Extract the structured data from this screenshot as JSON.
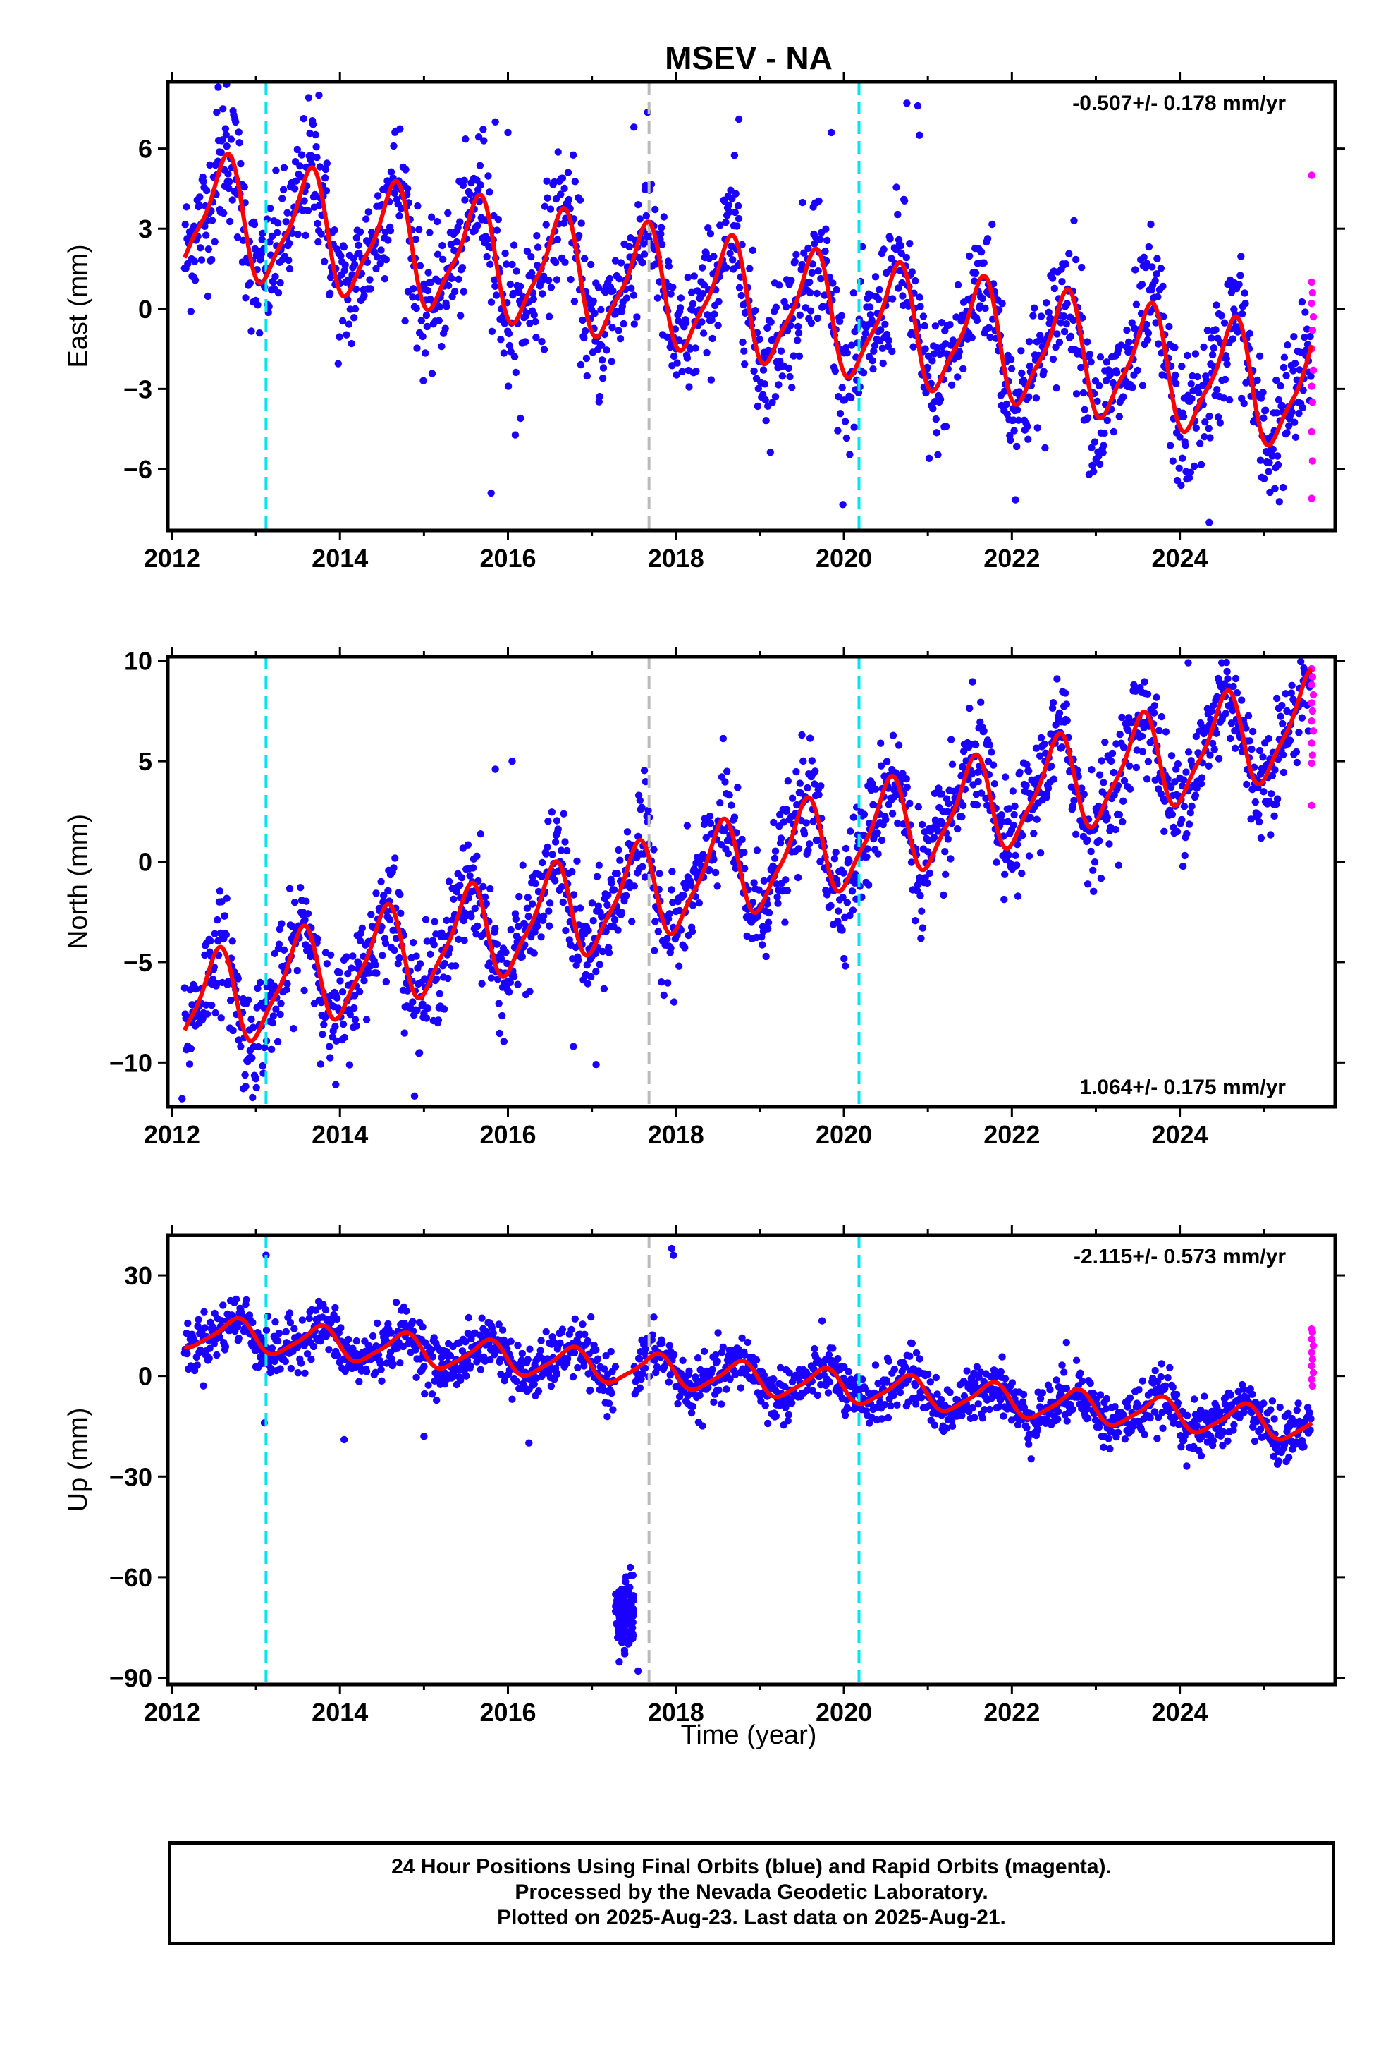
{
  "title": "MSEV - NA",
  "xlabel": "Time (year)",
  "caption": {
    "line1": "24 Hour Positions Using Final Orbits (blue) and Rapid Orbits (magenta).",
    "line2": "Processed by the Nevada Geodetic Laboratory.",
    "line3": "Plotted on 2025-Aug-23. Last data on 2025-Aug-21."
  },
  "colors": {
    "final_orbits": "#1a00ff",
    "rapid_orbits": "#ff00ff",
    "model_fit": "#ff0000",
    "equipment_change_lines": "#00e5ee",
    "other_event_line": "#bbbbbb"
  },
  "chart_data": [
    {
      "type": "scatter",
      "panel": "east",
      "ylabel": "East (mm)",
      "rate": "-0.507+/- 0.178 mm/yr",
      "xlim": [
        2011.95,
        2025.85
      ],
      "ylim": [
        -8.3,
        8.5
      ],
      "xticks": [
        "2012",
        "2014",
        "2016",
        "2018",
        "2020",
        "2022",
        "2024"
      ],
      "yticks": [
        "6",
        "3",
        "0",
        "−3",
        "−6"
      ],
      "ytick_values": [
        6,
        3,
        0,
        -3,
        -6
      ],
      "vlines_cyan": [
        2013.12,
        2020.18
      ],
      "vlines_gray": [
        2017.68
      ],
      "model": {
        "rate": -0.507,
        "ref_year": 2018.7,
        "offset": 0.3,
        "annual_amp": 2.1,
        "annual_peak": 0.62,
        "semiannual_amp": 0.55
      },
      "scatter_sd": 1.25,
      "rapid_points": [
        {
          "x": 2025.57,
          "y": 5.0
        },
        {
          "x": 2025.57,
          "y": 1.0
        },
        {
          "x": 2025.58,
          "y": 0.6
        },
        {
          "x": 2025.57,
          "y": 0.2
        },
        {
          "x": 2025.59,
          "y": -0.3
        },
        {
          "x": 2025.58,
          "y": -0.8
        },
        {
          "x": 2025.57,
          "y": -1.5
        },
        {
          "x": 2025.59,
          "y": -2.3
        },
        {
          "x": 2025.57,
          "y": -2.9
        },
        {
          "x": 2025.58,
          "y": -3.5
        },
        {
          "x": 2025.57,
          "y": -4.6
        },
        {
          "x": 2025.58,
          "y": -5.7
        },
        {
          "x": 2025.57,
          "y": -7.1
        }
      ],
      "outliers": [
        {
          "x": 2012.55,
          "y": 8.3
        },
        {
          "x": 2012.65,
          "y": 8.4
        },
        {
          "x": 2013.75,
          "y": 8.0
        },
        {
          "x": 2015.85,
          "y": 7.0
        },
        {
          "x": 2016.0,
          "y": 6.6
        },
        {
          "x": 2017.5,
          "y": 6.8
        },
        {
          "x": 2018.75,
          "y": 7.1
        },
        {
          "x": 2019.85,
          "y": 6.6
        },
        {
          "x": 2020.75,
          "y": 7.7
        },
        {
          "x": 2020.88,
          "y": 7.6
        },
        {
          "x": 2020.9,
          "y": 6.5
        },
        {
          "x": 2015.8,
          "y": -6.9
        },
        {
          "x": 2016.15,
          "y": -4.1
        },
        {
          "x": 2024.35,
          "y": -8.0
        }
      ]
    },
    {
      "type": "scatter",
      "panel": "north",
      "ylabel": "North (mm)",
      "rate": "1.064+/- 0.175 mm/yr",
      "xlim": [
        2011.95,
        2025.85
      ],
      "ylim": [
        -12.2,
        10.2
      ],
      "xticks": [
        "2012",
        "2014",
        "2016",
        "2018",
        "2020",
        "2022",
        "2024"
      ],
      "yticks": [
        "10",
        "5",
        "0",
        "−5",
        "−10"
      ],
      "ytick_values": [
        10,
        5,
        0,
        -5,
        -10
      ],
      "vlines_cyan": [
        2013.12,
        2020.18
      ],
      "vlines_gray": [
        2017.68
      ],
      "model": {
        "rate": 1.064,
        "ref_year": 2018.7,
        "offset": -0.4,
        "annual_amp": 2.3,
        "annual_peak": 0.52,
        "semiannual_amp": 0.6
      },
      "scatter_sd": 1.35,
      "rapid_points": [
        {
          "x": 2025.57,
          "y": 9.6
        },
        {
          "x": 2025.58,
          "y": 9.2
        },
        {
          "x": 2025.57,
          "y": 8.8
        },
        {
          "x": 2025.59,
          "y": 8.3
        },
        {
          "x": 2025.57,
          "y": 7.9
        },
        {
          "x": 2025.58,
          "y": 7.5
        },
        {
          "x": 2025.57,
          "y": 7.0
        },
        {
          "x": 2025.59,
          "y": 6.5
        },
        {
          "x": 2025.57,
          "y": 5.9
        },
        {
          "x": 2025.58,
          "y": 5.3
        },
        {
          "x": 2025.57,
          "y": 4.9
        },
        {
          "x": 2025.57,
          "y": 2.8
        }
      ],
      "outliers": [
        {
          "x": 2012.12,
          "y": -11.8
        },
        {
          "x": 2012.85,
          "y": -11.3
        },
        {
          "x": 2013.95,
          "y": -11.1
        },
        {
          "x": 2015.85,
          "y": 4.6
        },
        {
          "x": 2016.05,
          "y": 5.0
        },
        {
          "x": 2016.78,
          "y": -9.2
        },
        {
          "x": 2017.05,
          "y": -10.1
        },
        {
          "x": 2024.1,
          "y": 9.9
        },
        {
          "x": 2024.5,
          "y": 9.9
        }
      ]
    },
    {
      "type": "scatter",
      "panel": "up",
      "ylabel": "Up (mm)",
      "rate": "-2.115+/- 0.573 mm/yr",
      "xlim": [
        2011.95,
        2025.85
      ],
      "ylim": [
        -92,
        42
      ],
      "xticks": [
        "2012",
        "2014",
        "2016",
        "2018",
        "2020",
        "2022",
        "2024"
      ],
      "yticks": [
        "30",
        "0",
        "−30",
        "−60",
        "−90"
      ],
      "ytick_values": [
        30,
        0,
        -30,
        -60,
        -90
      ],
      "vlines_cyan": [
        2013.12,
        2020.18
      ],
      "vlines_gray": [
        2017.68
      ],
      "model": {
        "rate": -2.115,
        "ref_year": 2018.7,
        "offset": -0.5,
        "annual_amp": 4.6,
        "annual_peak": 0.75,
        "semiannual_amp": 1.0
      },
      "scatter_sd": 4.0,
      "cluster": {
        "x_start": 2017.28,
        "x_end": 2017.5,
        "y_mean": -71,
        "y_sd": 5,
        "count": 110
      },
      "rapid_points": [
        {
          "x": 2025.57,
          "y": 14
        },
        {
          "x": 2025.58,
          "y": 13
        },
        {
          "x": 2025.57,
          "y": 11
        },
        {
          "x": 2025.59,
          "y": 9
        },
        {
          "x": 2025.57,
          "y": 7
        },
        {
          "x": 2025.58,
          "y": 5
        },
        {
          "x": 2025.57,
          "y": 3
        },
        {
          "x": 2025.59,
          "y": 1
        },
        {
          "x": 2025.57,
          "y": -1
        },
        {
          "x": 2025.58,
          "y": -3
        }
      ],
      "outliers": [
        {
          "x": 2013.12,
          "y": 36
        },
        {
          "x": 2017.95,
          "y": 38
        },
        {
          "x": 2017.97,
          "y": 36
        },
        {
          "x": 2022.65,
          "y": 10
        },
        {
          "x": 2013.1,
          "y": -14
        },
        {
          "x": 2014.05,
          "y": -19
        },
        {
          "x": 2015.0,
          "y": -18
        },
        {
          "x": 2016.25,
          "y": -20
        },
        {
          "x": 2017.55,
          "y": -88
        }
      ]
    }
  ]
}
